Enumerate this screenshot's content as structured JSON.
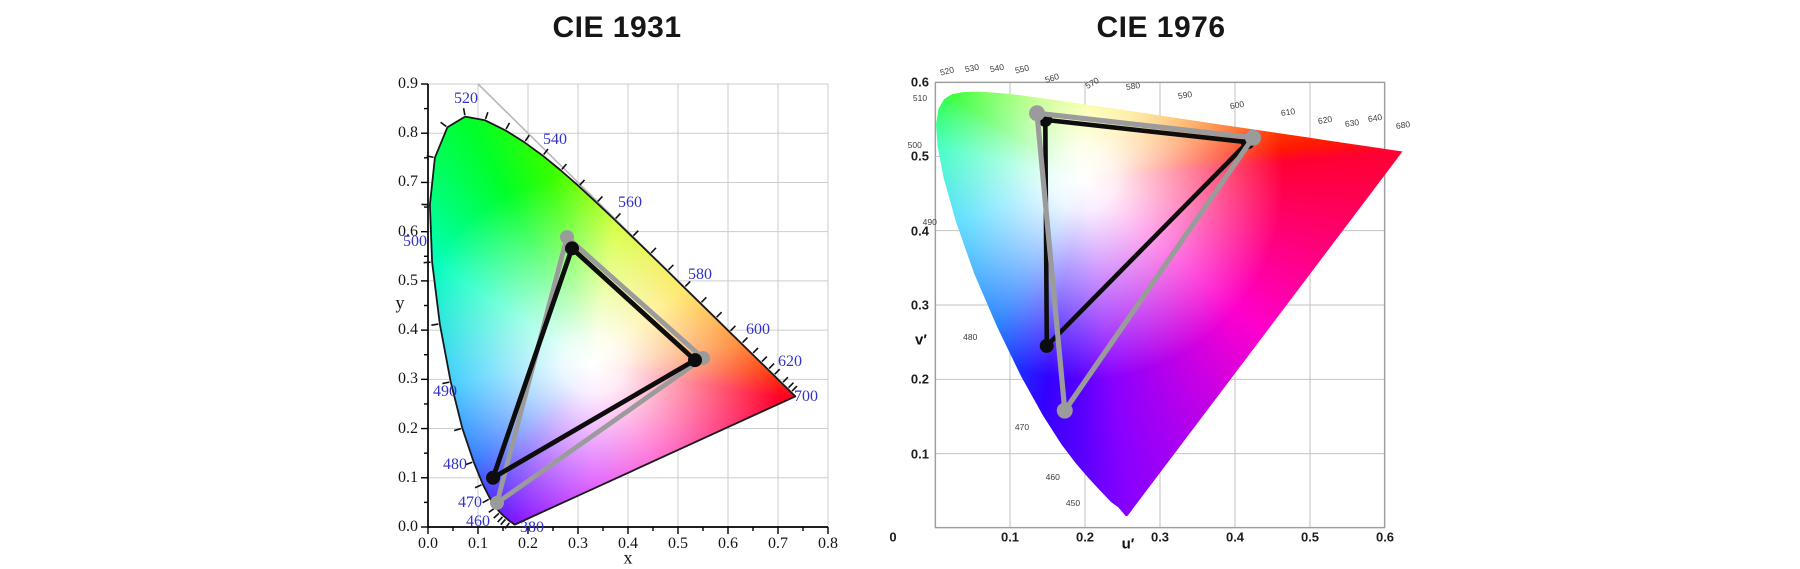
{
  "background": "#ffffff",
  "spectral_locus": [
    [
      380,
      0.1741,
      0.005
    ],
    [
      410,
      0.1726,
      0.0048
    ],
    [
      430,
      0.1689,
      0.0086
    ],
    [
      440,
      0.1644,
      0.0109
    ],
    [
      450,
      0.1566,
      0.0177
    ],
    [
      455,
      0.151,
      0.0227
    ],
    [
      460,
      0.144,
      0.0297
    ],
    [
      465,
      0.1355,
      0.0399
    ],
    [
      470,
      0.1241,
      0.0578
    ],
    [
      475,
      0.1096,
      0.0868
    ],
    [
      480,
      0.0913,
      0.1327
    ],
    [
      485,
      0.0687,
      0.2007
    ],
    [
      490,
      0.0454,
      0.295
    ],
    [
      495,
      0.0235,
      0.4127
    ],
    [
      500,
      0.0082,
      0.5384
    ],
    [
      505,
      0.0039,
      0.6548
    ],
    [
      510,
      0.0139,
      0.7502
    ],
    [
      515,
      0.0389,
      0.812
    ],
    [
      520,
      0.0743,
      0.8338
    ],
    [
      525,
      0.1142,
      0.8262
    ],
    [
      530,
      0.1547,
      0.8059
    ],
    [
      535,
      0.1929,
      0.7816
    ],
    [
      540,
      0.2296,
      0.7543
    ],
    [
      545,
      0.2658,
      0.7243
    ],
    [
      550,
      0.3016,
      0.6923
    ],
    [
      555,
      0.3373,
      0.6589
    ],
    [
      560,
      0.3731,
      0.6245
    ],
    [
      565,
      0.4087,
      0.5896
    ],
    [
      570,
      0.4441,
      0.5547
    ],
    [
      575,
      0.4788,
      0.5202
    ],
    [
      580,
      0.5125,
      0.4866
    ],
    [
      585,
      0.5448,
      0.4544
    ],
    [
      590,
      0.5752,
      0.4242
    ],
    [
      595,
      0.6029,
      0.3965
    ],
    [
      600,
      0.627,
      0.3725
    ],
    [
      605,
      0.6482,
      0.3514
    ],
    [
      610,
      0.6658,
      0.334
    ],
    [
      615,
      0.6801,
      0.3197
    ],
    [
      620,
      0.6915,
      0.3083
    ],
    [
      630,
      0.7079,
      0.292
    ],
    [
      640,
      0.719,
      0.2809
    ],
    [
      650,
      0.726,
      0.274
    ],
    [
      680,
      0.7334,
      0.2666
    ],
    [
      700,
      0.7347,
      0.2653
    ]
  ],
  "chart_data": [
    {
      "type": "chromaticity-diagram",
      "title": "CIE 1931",
      "xlabel": "x",
      "ylabel": "y",
      "xlim": [
        0,
        0.8
      ],
      "ylim": [
        0,
        0.9
      ],
      "coordinate_system": "xy",
      "grid": true,
      "grid_step": 0.1,
      "grid_color": "#cdcdcd",
      "axis_style": "axes",
      "axis_color": "#000000",
      "tick_step_minor": 0.05,
      "xticks": [
        {
          "v": 0.0,
          "text": "0.0"
        },
        {
          "v": 0.1,
          "text": "0.1"
        },
        {
          "v": 0.2,
          "text": "0.2"
        },
        {
          "v": 0.3,
          "text": "0.3"
        },
        {
          "v": 0.4,
          "text": "0.4"
        },
        {
          "v": 0.5,
          "text": "0.5"
        },
        {
          "v": 0.6,
          "text": "0.6"
        },
        {
          "v": 0.7,
          "text": "0.7"
        },
        {
          "v": 0.8,
          "text": "0.8"
        }
      ],
      "yticks": [
        {
          "v": 0.0,
          "text": "0.0"
        },
        {
          "v": 0.1,
          "text": "0.1"
        },
        {
          "v": 0.2,
          "text": "0.2"
        },
        {
          "v": 0.3,
          "text": "0.3"
        },
        {
          "v": 0.4,
          "text": "0.4"
        },
        {
          "v": 0.5,
          "text": "0.5"
        },
        {
          "v": 0.6,
          "text": "0.6"
        },
        {
          "v": 0.7,
          "text": "0.7"
        },
        {
          "v": 0.8,
          "text": "0.8"
        },
        {
          "v": 0.9,
          "text": "0.9"
        }
      ],
      "wavelength_label_color": "#3232c8",
      "wavelength_labels": [
        {
          "text": "520",
          "x": 0.076,
          "y": 0.87,
          "rot": 0
        },
        {
          "text": "540",
          "x": 0.254,
          "y": 0.786,
          "rot": 0
        },
        {
          "text": "560",
          "x": 0.404,
          "y": 0.658,
          "rot": 0
        },
        {
          "text": "580",
          "x": 0.544,
          "y": 0.512,
          "rot": 0
        },
        {
          "text": "600",
          "x": 0.66,
          "y": 0.4,
          "rot": 0
        },
        {
          "text": "620",
          "x": 0.724,
          "y": 0.335,
          "rot": 0
        },
        {
          "text": "700",
          "x": 0.756,
          "y": 0.264,
          "rot": 0
        },
        {
          "text": "500",
          "x": -0.026,
          "y": 0.579,
          "rot": 0
        },
        {
          "text": "490",
          "x": 0.034,
          "y": 0.274,
          "rot": 0
        },
        {
          "text": "480",
          "x": 0.054,
          "y": 0.126,
          "rot": 0
        },
        {
          "text": "470",
          "x": 0.084,
          "y": 0.049,
          "rot": 0
        },
        {
          "text": "460",
          "x": 0.1,
          "y": 0.01,
          "rot": 0
        },
        {
          "text": "380",
          "x": 0.208,
          "y": -0.002,
          "rot": 0
        }
      ],
      "locus_outline": {
        "color": "#1a1a1a",
        "width": 1.8
      },
      "locus_ticks": {
        "enabled": true,
        "wl_min": 440,
        "wl_max": 650,
        "color": "#111111",
        "length": 7
      },
      "diagonal_line": {
        "from": [
          0.1,
          0.9
        ],
        "to": [
          0.735,
          0.265
        ],
        "color": "#b8b8b8",
        "width": 1.6
      },
      "fill": {
        "center": [
          0.33,
          0.33
        ],
        "white_core": 30,
        "white_radius": 190,
        "stops": [
          [
            0,
            "#88ff00"
          ],
          [
            9,
            "#c8ff00"
          ],
          [
            50,
            "#ffd900"
          ],
          [
            82,
            "#ff6a00"
          ],
          [
            93,
            "#ff2d00"
          ],
          [
            100,
            "#ff0026"
          ],
          [
            147,
            "#ff00b3"
          ],
          [
            180,
            "#cc00ff"
          ],
          [
            206,
            "#7700ff"
          ],
          [
            217,
            "#3c14ff"
          ],
          [
            231,
            "#0055ff"
          ],
          [
            263,
            "#00bbff"
          ],
          [
            303,
            "#00ffbb"
          ],
          [
            333,
            "#00ff2a"
          ],
          [
            347,
            "#33ff00"
          ],
          [
            360,
            "#88ff00"
          ]
        ]
      },
      "gamuts": [
        {
          "name": "gamut-triangle-gray",
          "color": "#9b9b9b",
          "width": 4.8,
          "dot_r": 7,
          "vertices": [
            [
              0.278,
              0.589
            ],
            [
              0.55,
              0.343
            ],
            [
              0.138,
              0.049
            ]
          ]
        },
        {
          "name": "gamut-triangle-black",
          "color": "#0d0d0d",
          "width": 4.8,
          "dot_r": 7,
          "vertices": [
            [
              0.288,
              0.566
            ],
            [
              0.534,
              0.339
            ],
            [
              0.13,
              0.1
            ]
          ]
        }
      ]
    },
    {
      "type": "chromaticity-diagram",
      "title": "CIE 1976",
      "xlabel": "u′",
      "ylabel": "v′",
      "xlim": [
        0,
        0.6
      ],
      "ylim": [
        0,
        0.6
      ],
      "coordinate_system": "u'v'",
      "grid": true,
      "grid_step": 0.1,
      "grid_color": "#c2c2c2",
      "axis_style": "box",
      "axis_color": "#9e9e9e",
      "xticks": [
        {
          "v": 0,
          "text": "0",
          "dx": -42
        },
        {
          "v": 0.1,
          "text": "0.1"
        },
        {
          "v": 0.2,
          "text": "0.2"
        },
        {
          "v": 0.3,
          "text": "0.3"
        },
        {
          "v": 0.4,
          "text": "0.4"
        },
        {
          "v": 0.5,
          "text": "0.5"
        },
        {
          "v": 0.6,
          "text": "0.6"
        }
      ],
      "yticks": [
        {
          "v": 0.1,
          "text": "0.1"
        },
        {
          "v": 0.2,
          "text": "0.2"
        },
        {
          "v": 0.3,
          "text": "0.3"
        },
        {
          "v": 0.4,
          "text": "0.4"
        },
        {
          "v": 0.5,
          "text": "0.5"
        },
        {
          "v": 0.6,
          "text": "0.6"
        }
      ],
      "wavelength_label_color": "#3c3c3c",
      "wavelength_labels": [
        {
          "text": "520",
          "x": 0.016,
          "y": 0.615,
          "rot": -14
        },
        {
          "text": "530",
          "x": 0.049,
          "y": 0.619,
          "rot": -12
        },
        {
          "text": "540",
          "x": 0.083,
          "y": 0.619,
          "rot": -12
        },
        {
          "text": "550",
          "x": 0.116,
          "y": 0.617,
          "rot": -14
        },
        {
          "text": "560",
          "x": 0.156,
          "y": 0.606,
          "rot": -18
        },
        {
          "text": "570",
          "x": 0.209,
          "y": 0.599,
          "rot": -30
        },
        {
          "text": "580",
          "x": 0.264,
          "y": 0.594,
          "rot": -8
        },
        {
          "text": "590",
          "x": 0.333,
          "y": 0.583,
          "rot": -8
        },
        {
          "text": "600",
          "x": 0.403,
          "y": 0.569,
          "rot": -10
        },
        {
          "text": "610",
          "x": 0.471,
          "y": 0.56,
          "rot": -8
        },
        {
          "text": "620",
          "x": 0.52,
          "y": 0.549,
          "rot": -10
        },
        {
          "text": "630",
          "x": 0.556,
          "y": 0.545,
          "rot": -8
        },
        {
          "text": "640",
          "x": 0.587,
          "y": 0.551,
          "rot": -10
        },
        {
          "text": "680",
          "x": 0.624,
          "y": 0.542,
          "rot": -8
        },
        {
          "text": "510",
          "x": -0.02,
          "y": 0.579,
          "rot": 0
        },
        {
          "text": "500",
          "x": -0.027,
          "y": 0.515,
          "rot": 0
        },
        {
          "text": "490",
          "x": -0.007,
          "y": 0.411,
          "rot": 0
        },
        {
          "text": "480",
          "x": 0.047,
          "y": 0.257,
          "rot": 0
        },
        {
          "text": "470",
          "x": 0.116,
          "y": 0.136,
          "rot": 0
        },
        {
          "text": "460",
          "x": 0.157,
          "y": 0.069,
          "rot": 0
        },
        {
          "text": "450",
          "x": 0.184,
          "y": 0.034,
          "rot": 0
        }
      ],
      "locus_outline": null,
      "locus_ticks": {
        "enabled": false
      },
      "diagonal_line": null,
      "fill": {
        "center": [
          0.1978,
          0.4683
        ],
        "white_core": 32,
        "white_radius": 200,
        "stops": [
          [
            0,
            "#e8ff00"
          ],
          [
            3,
            "#eeff00"
          ],
          [
            36,
            "#ffcc00"
          ],
          [
            59,
            "#ff8800"
          ],
          [
            71,
            "#ff5500"
          ],
          [
            81,
            "#ff1a00"
          ],
          [
            85,
            "#ff0033"
          ],
          [
            130,
            "#ff00cc"
          ],
          [
            172,
            "#8800ff"
          ],
          [
            181,
            "#5500ff"
          ],
          [
            190,
            "#3300ff"
          ],
          [
            210,
            "#0066ff"
          ],
          [
            252,
            "#00ccff"
          ],
          [
            283,
            "#00ffaa"
          ],
          [
            296,
            "#00ff44"
          ],
          [
            303,
            "#00ff00"
          ],
          [
            338,
            "#99ff00"
          ],
          [
            360,
            "#e8ff00"
          ]
        ]
      },
      "gamuts": [
        {
          "name": "gamut-triangle-black",
          "color": "#0d0d0d",
          "width": 4.6,
          "dot_r": 7,
          "vertices": [
            [
              0.147,
              0.549
            ],
            [
              0.417,
              0.519
            ],
            [
              0.149,
              0.245
            ]
          ]
        },
        {
          "name": "gamut-triangle-gray",
          "color": "#9b9b9b",
          "width": 5.2,
          "dot_r": 8,
          "vertices": [
            [
              0.136,
              0.558
            ],
            [
              0.424,
              0.525
            ],
            [
              0.173,
              0.158
            ]
          ]
        }
      ]
    }
  ]
}
